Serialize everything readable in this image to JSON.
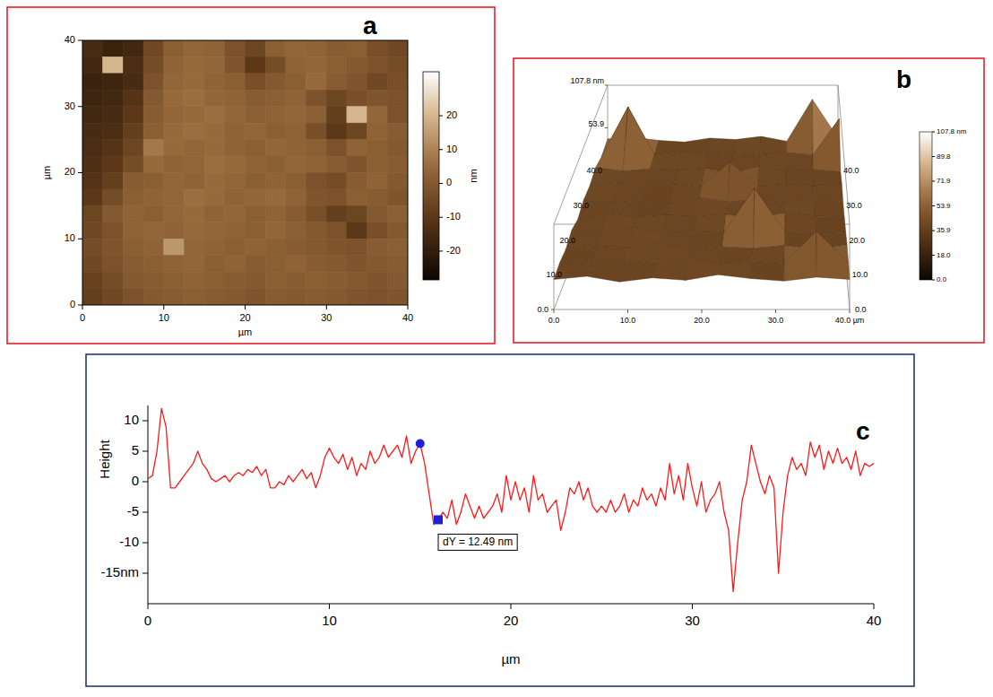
{
  "chart_data": [
    {
      "type": "heatmap",
      "panel_label": "a",
      "x_label": "µm",
      "y_label": "µm",
      "xlim": [
        0,
        40
      ],
      "ylim": [
        0,
        40
      ],
      "xticks": [
        0,
        10,
        20,
        30,
        40
      ],
      "yticks": [
        0,
        10,
        20,
        30,
        40
      ],
      "cells": [
        [
          -15,
          -18,
          -16,
          -5,
          2,
          4,
          3,
          -2,
          -6,
          2,
          4,
          3,
          1,
          2,
          -3,
          -5
        ],
        [
          -16,
          20,
          -14,
          -4,
          3,
          5,
          4,
          -1,
          -10,
          -4,
          3,
          4,
          2,
          0,
          -2,
          -4
        ],
        [
          -18,
          -17,
          -15,
          -2,
          4,
          5,
          3,
          2,
          -3,
          0,
          2,
          5,
          1,
          -1,
          -5,
          -3
        ],
        [
          -17,
          -16,
          -12,
          0,
          5,
          6,
          4,
          3,
          1,
          2,
          3,
          -2,
          -6,
          -3,
          -1,
          -2
        ],
        [
          -16,
          -15,
          -10,
          1,
          4,
          5,
          6,
          4,
          2,
          3,
          4,
          2,
          -8,
          20,
          4,
          -2
        ],
        [
          -15,
          -14,
          -8,
          2,
          5,
          6,
          5,
          3,
          4,
          2,
          3,
          -3,
          -10,
          -6,
          3,
          1
        ],
        [
          -14,
          -12,
          -6,
          8,
          5,
          4,
          5,
          3,
          2,
          4,
          3,
          2,
          -2,
          3,
          2,
          0
        ],
        [
          -13,
          -10,
          -4,
          5,
          3,
          4,
          6,
          5,
          3,
          2,
          4,
          3,
          1,
          -1,
          2,
          1
        ],
        [
          -12,
          -8,
          1,
          2,
          4,
          3,
          5,
          4,
          2,
          3,
          2,
          -2,
          -4,
          1,
          3,
          0
        ],
        [
          -10,
          -4,
          2,
          3,
          4,
          6,
          5,
          3,
          4,
          5,
          3,
          -1,
          -2,
          2,
          1,
          -1
        ],
        [
          -6,
          0,
          3,
          2,
          4,
          5,
          3,
          4,
          2,
          3,
          1,
          -3,
          -8,
          -6,
          0,
          2
        ],
        [
          -5,
          -2,
          3,
          4,
          3,
          5,
          4,
          3,
          2,
          4,
          2,
          0,
          -2,
          -10,
          -3,
          0
        ],
        [
          -4,
          -1,
          2,
          3,
          14,
          4,
          3,
          2,
          3,
          2,
          1,
          0,
          -1,
          -2,
          1,
          2
        ],
        [
          -5,
          -2,
          1,
          2,
          3,
          4,
          2,
          3,
          1,
          2,
          3,
          1,
          0,
          -1,
          0,
          1
        ],
        [
          -7,
          -4,
          0,
          1,
          2,
          3,
          2,
          1,
          0,
          2,
          1,
          2,
          1,
          0,
          -1,
          0
        ],
        [
          -8,
          -5,
          -2,
          0,
          1,
          2,
          1,
          0,
          -1,
          1,
          0,
          1,
          0,
          -1,
          -2,
          -1
        ]
      ],
      "colorbar": {
        "range": [
          -28.5,
          33
        ],
        "ticks": [
          20,
          10,
          0,
          -10,
          -20
        ],
        "label": "nm"
      }
    },
    {
      "type": "surface",
      "panel_label": "b",
      "xlim": [
        0,
        40
      ],
      "ylim": [
        0,
        40
      ],
      "zlim": [
        0,
        107.8
      ],
      "xticks": [
        {
          "value": 0,
          "label": "0.0"
        },
        {
          "value": 10,
          "label": "10.0"
        },
        {
          "value": 20,
          "label": "20.0"
        },
        {
          "value": 30,
          "label": "30.0"
        },
        {
          "value": 40,
          "label": "40.0 µm"
        }
      ],
      "yticks": [
        {
          "value": 0,
          "label": "0.0"
        },
        {
          "value": 10,
          "label": "10.0"
        },
        {
          "value": 20,
          "label": "20.0"
        },
        {
          "value": 30,
          "label": "30.0"
        },
        {
          "value": 40,
          "label": "40.0"
        }
      ],
      "zticks": [
        {
          "value": 53.9,
          "label": "53.9"
        },
        {
          "value": 107.8,
          "label": "107.8 nm"
        }
      ],
      "heights": [
        [
          38,
          42,
          35,
          40,
          37,
          44,
          39,
          36,
          41,
          38
        ],
        [
          40,
          36,
          43,
          38,
          45,
          37,
          41,
          39,
          80,
          40
        ],
        [
          37,
          41,
          39,
          44,
          36,
          40,
          38,
          42,
          37,
          43
        ],
        [
          42,
          38,
          45,
          37,
          41,
          39,
          95,
          40,
          36,
          39
        ],
        [
          36,
          43,
          38,
          41,
          39,
          42,
          37,
          44,
          40,
          38
        ],
        [
          41,
          37,
          40,
          36,
          44,
          38,
          41,
          37,
          43,
          36
        ],
        [
          39,
          44,
          37,
          42,
          38,
          70,
          39,
          41,
          38,
          42
        ],
        [
          43,
          38,
          41,
          39,
          42,
          36,
          44,
          38,
          40,
          37
        ],
        [
          37,
          100,
          39,
          43,
          37,
          41,
          38,
          42,
          39,
          85
        ],
        [
          40,
          42,
          38,
          36,
          41,
          39,
          43,
          37,
          90,
          41
        ]
      ],
      "colorbar": {
        "range": [
          0,
          107.8
        ],
        "ticks": [
          {
            "value": 0,
            "label": "0.0"
          },
          {
            "value": 18,
            "label": "18.0"
          },
          {
            "value": 35.9,
            "label": "35.9"
          },
          {
            "value": 53.9,
            "label": "53.9"
          },
          {
            "value": 71.9,
            "label": "71.9"
          },
          {
            "value": 89.8,
            "label": "89.8"
          },
          {
            "value": 107.8,
            "label": "107.8 nm"
          }
        ]
      }
    },
    {
      "type": "line",
      "panel_label": "c",
      "x_label": "µm",
      "y_label": "Height",
      "xlim": [
        0,
        40
      ],
      "ylim": [
        -20,
        12.5
      ],
      "xticks": [
        0,
        10,
        20,
        30,
        40
      ],
      "yticks": [
        {
          "value": -15,
          "label": "-15nm"
        },
        -10,
        -5,
        0,
        5,
        10
      ],
      "x": [
        0,
        0.25,
        0.5,
        0.75,
        1,
        1.25,
        1.5,
        1.75,
        2,
        2.25,
        2.5,
        2.75,
        3,
        3.25,
        3.5,
        3.75,
        4,
        4.25,
        4.5,
        4.75,
        5,
        5.25,
        5.5,
        5.75,
        6,
        6.25,
        6.5,
        6.75,
        7,
        7.25,
        7.5,
        7.75,
        8,
        8.25,
        8.5,
        8.75,
        9,
        9.25,
        9.5,
        9.75,
        10,
        10.25,
        10.5,
        10.75,
        11,
        11.25,
        11.5,
        11.75,
        12,
        12.25,
        12.5,
        12.75,
        13,
        13.25,
        13.5,
        13.75,
        14,
        14.25,
        14.5,
        14.75,
        15,
        15.25,
        15.5,
        15.75,
        16,
        16.25,
        16.5,
        16.75,
        17,
        17.25,
        17.5,
        17.75,
        18,
        18.25,
        18.5,
        18.75,
        19,
        19.25,
        19.5,
        19.75,
        20,
        20.25,
        20.5,
        20.75,
        21,
        21.25,
        21.5,
        21.75,
        22,
        22.25,
        22.5,
        22.75,
        23,
        23.25,
        23.5,
        23.75,
        24,
        24.25,
        24.5,
        24.75,
        25,
        25.25,
        25.5,
        25.75,
        26,
        26.25,
        26.5,
        26.75,
        27,
        27.25,
        27.5,
        27.75,
        28,
        28.25,
        28.5,
        28.75,
        29,
        29.25,
        29.5,
        29.75,
        30,
        30.25,
        30.5,
        30.75,
        31,
        31.25,
        31.5,
        31.75,
        32,
        32.25,
        32.5,
        32.75,
        33,
        33.25,
        33.5,
        33.75,
        34,
        34.25,
        34.5,
        34.75,
        35,
        35.25,
        35.5,
        35.75,
        36,
        36.25,
        36.5,
        36.75,
        37,
        37.25,
        37.5,
        37.75,
        38,
        38.25,
        38.5,
        38.75,
        39,
        39.25,
        39.5,
        39.75,
        40
      ],
      "series": [
        {
          "color": "#ff1a1a",
          "values": [
            0.5,
            1,
            5,
            12,
            9,
            -1,
            -1,
            0,
            1,
            2,
            3,
            5,
            3,
            2,
            0.5,
            0,
            0.5,
            1,
            0,
            1,
            1.5,
            1,
            2,
            1.5,
            2.5,
            1,
            2,
            -1,
            -1,
            0,
            -0.5,
            1,
            0,
            1,
            2,
            0.5,
            1.5,
            -1,
            1,
            4,
            5.5,
            4,
            3,
            4.5,
            2,
            4,
            1,
            3,
            2,
            5,
            3,
            4,
            6,
            4,
            5,
            6,
            4,
            7.5,
            3,
            5,
            6.25,
            3,
            -2,
            -7,
            -6.24,
            -5,
            -6,
            -3,
            -7,
            -5,
            -2,
            -4,
            -6,
            -4,
            -6,
            -5,
            -4,
            -2,
            -5,
            1,
            -3,
            0,
            -3,
            -1,
            -5,
            1,
            -3,
            -2,
            -5,
            -4,
            -3,
            -8,
            -5,
            -1,
            -2,
            0,
            -3,
            -1,
            -4,
            -5,
            -4,
            -5,
            -3,
            -5,
            -4,
            -2,
            -5,
            -3,
            -4,
            -1,
            -3,
            -2,
            -4,
            -1,
            -3,
            3,
            -2,
            1,
            -3,
            3,
            -1,
            -4,
            0,
            -5,
            -3,
            -2,
            0,
            -5,
            -8,
            -18,
            -10,
            -3,
            0,
            6,
            3,
            0,
            -2,
            1,
            -1,
            -15,
            -5,
            1,
            4,
            2,
            3,
            1,
            6.5,
            4,
            6,
            2,
            5,
            3,
            5.5,
            3,
            4,
            2,
            5,
            1,
            3,
            2.5,
            3
          ]
        }
      ],
      "cursors": [
        {
          "x": 15,
          "y": 6.25,
          "marker": "circle",
          "color": "#1f1fd6"
        },
        {
          "x": 16,
          "y": -6.24,
          "marker": "square",
          "color": "#1f1fd6"
        }
      ],
      "annotation": "dY = 12.49 nm"
    }
  ]
}
